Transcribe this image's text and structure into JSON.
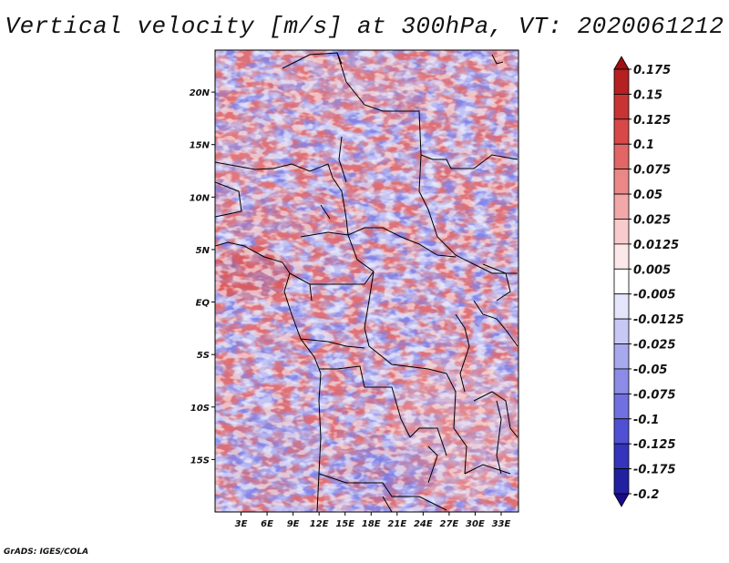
{
  "title": "Vertical velocity [m/s] at 300hPa, VT: 2020061212",
  "footer": "GrADS: IGES/COLA",
  "map": {
    "lon_range": [
      0,
      35
    ],
    "lat_range": [
      -20,
      24
    ],
    "lat_ticks": [
      {
        "value": 20,
        "label": "20N"
      },
      {
        "value": 15,
        "label": "15N"
      },
      {
        "value": 10,
        "label": "10N"
      },
      {
        "value": 5,
        "label": "5N"
      },
      {
        "value": 0,
        "label": "EQ"
      },
      {
        "value": -5,
        "label": "5S"
      },
      {
        "value": -10,
        "label": "10S"
      },
      {
        "value": -15,
        "label": "15S"
      }
    ],
    "lon_ticks": [
      {
        "value": 3,
        "label": "3E"
      },
      {
        "value": 6,
        "label": "6E"
      },
      {
        "value": 9,
        "label": "9E"
      },
      {
        "value": 12,
        "label": "12E"
      },
      {
        "value": 15,
        "label": "15E"
      },
      {
        "value": 18,
        "label": "18E"
      },
      {
        "value": 21,
        "label": "21E"
      },
      {
        "value": 24,
        "label": "24E"
      },
      {
        "value": 27,
        "label": "27E"
      },
      {
        "value": 30,
        "label": "30E"
      },
      {
        "value": 33,
        "label": "33E"
      }
    ]
  },
  "colorbar": {
    "levels": [
      "0.175",
      "0.15",
      "0.125",
      "0.1",
      "0.075",
      "0.05",
      "0.025",
      "0.0125",
      "0.005",
      "-0.005",
      "-0.0125",
      "-0.025",
      "-0.05",
      "-0.075",
      "-0.1",
      "-0.125",
      "-0.175",
      "-0.2"
    ],
    "colors": [
      "#a01010",
      "#b52020",
      "#c83434",
      "#d84848",
      "#e26666",
      "#ea8888",
      "#f2a8a8",
      "#f8cccc",
      "#fce8e8",
      "#ffffff",
      "#e4e4fb",
      "#c8c8f6",
      "#a8a8ef",
      "#8c8ce8",
      "#7070e0",
      "#5050d4",
      "#3434bc",
      "#2020a0",
      "#1a0a8c"
    ]
  }
}
